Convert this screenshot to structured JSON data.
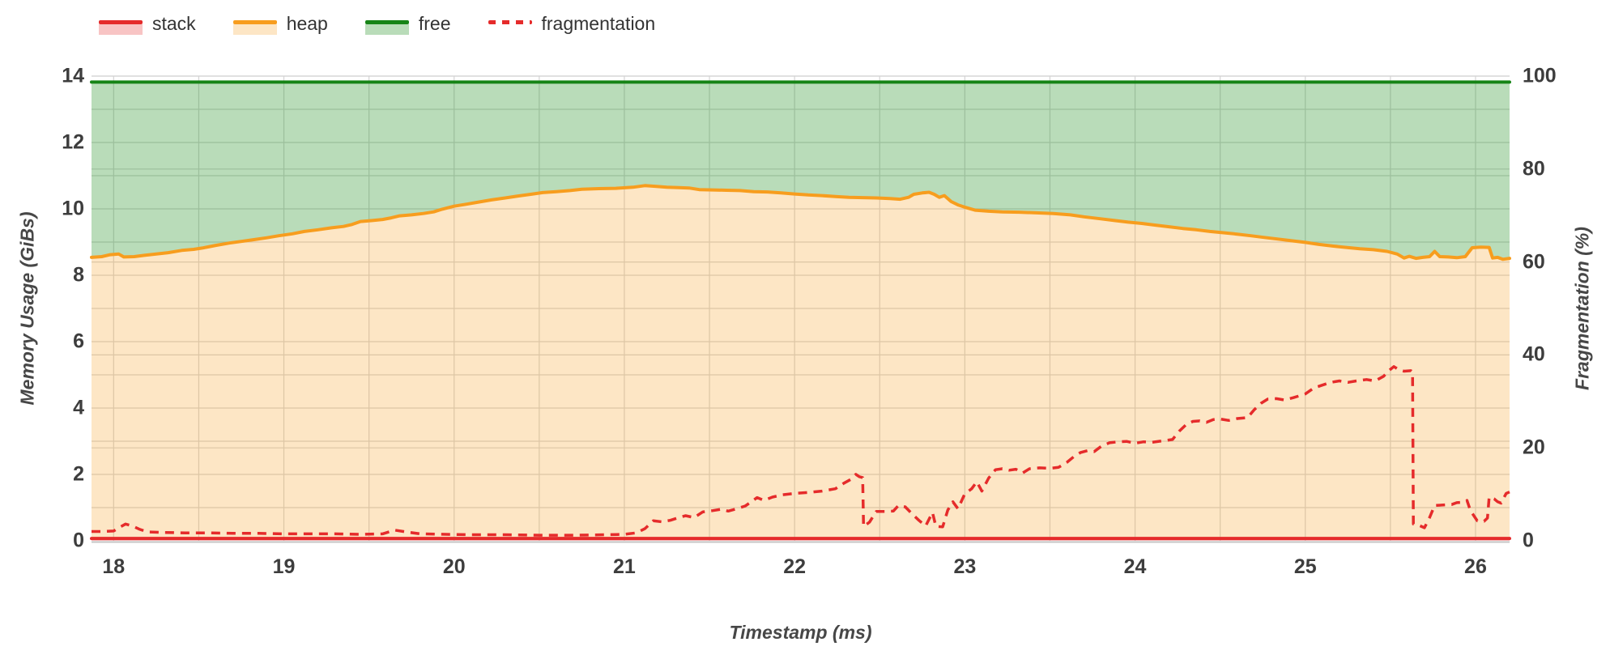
{
  "legend": {
    "items": [
      {
        "label": "stack",
        "line_color": "#e52b2b",
        "fill_color": "rgba(229,43,43,0.28)",
        "dashed": false
      },
      {
        "label": "heap",
        "line_color": "#f79d1e",
        "fill_color": "rgba(247,157,30,0.26)",
        "dashed": false
      },
      {
        "label": "free",
        "line_color": "#168416",
        "fill_color": "rgba(44,150,44,0.33)",
        "dashed": false
      },
      {
        "label": "fragmentation",
        "line_color": "#e52b2b",
        "fill_color": null,
        "dashed": true
      }
    ]
  },
  "axes": {
    "x": {
      "ticks": [
        "18",
        "19",
        "20",
        "21",
        "22",
        "23",
        "24",
        "25",
        "26"
      ]
    },
    "y_left": {
      "ticks": [
        "0",
        "2",
        "4",
        "6",
        "8",
        "10",
        "12",
        "14"
      ]
    },
    "y_right": {
      "ticks": [
        "0",
        "20",
        "40",
        "60",
        "80",
        "100"
      ]
    }
  },
  "colors": {
    "grid": "#d4d4d4",
    "axis_line": "#c4c4c4",
    "tick_text": "#3d3d3d",
    "title_text": "#474747"
  },
  "chart_data": {
    "type": "area",
    "title": "",
    "xlabel": "Timestamp (ms)",
    "ylabel": "Memory Usage (GiBs)",
    "y2label": "Fragmentation (%)",
    "xlim": [
      17.87,
      26.2
    ],
    "ylim": [
      0,
      14
    ],
    "y2lim": [
      0,
      100
    ],
    "x_gridstep": 0.5,
    "y_gridstep": 1,
    "y2_gridstep": 20,
    "grid": true,
    "legend_position": "top-left",
    "series": [
      {
        "name": "stack",
        "axis": "y",
        "kind": "area",
        "line_color": "#e52b2b",
        "fill_color": "rgba(229,43,43,0.28)",
        "lower": 0,
        "points": [
          [
            17.87,
            0.07
          ],
          [
            26.2,
            0.07
          ]
        ]
      },
      {
        "name": "heap",
        "axis": "y",
        "kind": "area",
        "line_color": "#f79d1e",
        "fill_color": "rgba(247,157,30,0.26)",
        "lower": 0.07,
        "points": [
          [
            17.87,
            8.54
          ],
          [
            17.93,
            8.56
          ],
          [
            17.98,
            8.62
          ],
          [
            18.03,
            8.64
          ],
          [
            18.06,
            8.55
          ],
          [
            18.12,
            8.56
          ],
          [
            18.18,
            8.6
          ],
          [
            18.25,
            8.64
          ],
          [
            18.32,
            8.68
          ],
          [
            18.4,
            8.75
          ],
          [
            18.47,
            8.78
          ],
          [
            18.52,
            8.82
          ],
          [
            18.6,
            8.9
          ],
          [
            18.68,
            8.97
          ],
          [
            18.75,
            9.02
          ],
          [
            18.82,
            9.07
          ],
          [
            18.9,
            9.13
          ],
          [
            18.97,
            9.19
          ],
          [
            19.05,
            9.25
          ],
          [
            19.12,
            9.32
          ],
          [
            19.2,
            9.37
          ],
          [
            19.28,
            9.43
          ],
          [
            19.35,
            9.47
          ],
          [
            19.4,
            9.53
          ],
          [
            19.45,
            9.62
          ],
          [
            19.52,
            9.65
          ],
          [
            19.58,
            9.68
          ],
          [
            19.63,
            9.73
          ],
          [
            19.68,
            9.79
          ],
          [
            19.75,
            9.82
          ],
          [
            19.82,
            9.86
          ],
          [
            19.88,
            9.91
          ],
          [
            19.93,
            9.99
          ],
          [
            20.0,
            10.08
          ],
          [
            20.07,
            10.14
          ],
          [
            20.15,
            10.21
          ],
          [
            20.22,
            10.27
          ],
          [
            20.3,
            10.33
          ],
          [
            20.38,
            10.39
          ],
          [
            20.45,
            10.44
          ],
          [
            20.52,
            10.49
          ],
          [
            20.6,
            10.52
          ],
          [
            20.68,
            10.55
          ],
          [
            20.75,
            10.59
          ],
          [
            20.85,
            10.61
          ],
          [
            20.95,
            10.62
          ],
          [
            21.05,
            10.65
          ],
          [
            21.12,
            10.7
          ],
          [
            21.18,
            10.68
          ],
          [
            21.25,
            10.65
          ],
          [
            21.32,
            10.64
          ],
          [
            21.38,
            10.63
          ],
          [
            21.44,
            10.58
          ],
          [
            21.52,
            10.57
          ],
          [
            21.6,
            10.56
          ],
          [
            21.68,
            10.55
          ],
          [
            21.76,
            10.52
          ],
          [
            21.84,
            10.51
          ],
          [
            21.92,
            10.48
          ],
          [
            22.0,
            10.45
          ],
          [
            22.08,
            10.42
          ],
          [
            22.16,
            10.4
          ],
          [
            22.24,
            10.37
          ],
          [
            22.32,
            10.35
          ],
          [
            22.4,
            10.34
          ],
          [
            22.48,
            10.33
          ],
          [
            22.56,
            10.31
          ],
          [
            22.62,
            10.29
          ],
          [
            22.67,
            10.35
          ],
          [
            22.7,
            10.44
          ],
          [
            22.75,
            10.48
          ],
          [
            22.79,
            10.5
          ],
          [
            22.82,
            10.44
          ],
          [
            22.85,
            10.35
          ],
          [
            22.88,
            10.4
          ],
          [
            22.92,
            10.22
          ],
          [
            22.96,
            10.12
          ],
          [
            23.0,
            10.05
          ],
          [
            23.06,
            9.96
          ],
          [
            23.14,
            9.93
          ],
          [
            23.22,
            9.91
          ],
          [
            23.32,
            9.9
          ],
          [
            23.42,
            9.88
          ],
          [
            23.52,
            9.86
          ],
          [
            23.62,
            9.82
          ],
          [
            23.7,
            9.76
          ],
          [
            23.8,
            9.7
          ],
          [
            23.88,
            9.65
          ],
          [
            23.96,
            9.6
          ],
          [
            24.04,
            9.56
          ],
          [
            24.12,
            9.51
          ],
          [
            24.2,
            9.46
          ],
          [
            24.28,
            9.41
          ],
          [
            24.36,
            9.37
          ],
          [
            24.44,
            9.32
          ],
          [
            24.52,
            9.28
          ],
          [
            24.6,
            9.24
          ],
          [
            24.68,
            9.19
          ],
          [
            24.76,
            9.14
          ],
          [
            24.84,
            9.09
          ],
          [
            24.92,
            9.04
          ],
          [
            25.0,
            8.99
          ],
          [
            25.08,
            8.93
          ],
          [
            25.16,
            8.88
          ],
          [
            25.24,
            8.84
          ],
          [
            25.32,
            8.8
          ],
          [
            25.4,
            8.77
          ],
          [
            25.48,
            8.72
          ],
          [
            25.54,
            8.64
          ],
          [
            25.58,
            8.52
          ],
          [
            25.61,
            8.57
          ],
          [
            25.65,
            8.51
          ],
          [
            25.69,
            8.54
          ],
          [
            25.73,
            8.56
          ],
          [
            25.76,
            8.72
          ],
          [
            25.79,
            8.56
          ],
          [
            25.84,
            8.55
          ],
          [
            25.89,
            8.53
          ],
          [
            25.94,
            8.56
          ],
          [
            25.98,
            8.83
          ],
          [
            26.03,
            8.85
          ],
          [
            26.08,
            8.84
          ],
          [
            26.1,
            8.52
          ],
          [
            26.13,
            8.54
          ],
          [
            26.16,
            8.48
          ],
          [
            26.2,
            8.51
          ]
        ]
      },
      {
        "name": "free",
        "axis": "y",
        "kind": "area",
        "line_color": "#168416",
        "fill_color": "rgba(44,150,44,0.33)",
        "lower": "heap",
        "points": [
          [
            17.87,
            13.82
          ],
          [
            26.2,
            13.82
          ]
        ]
      },
      {
        "name": "fragmentation",
        "axis": "y2",
        "kind": "dashed-line",
        "line_color": "#e52b2b",
        "dash": [
          11,
          8
        ],
        "points": [
          [
            17.87,
            2.0
          ],
          [
            17.94,
            2.0
          ],
          [
            18.0,
            2.1
          ],
          [
            18.04,
            3.0
          ],
          [
            18.07,
            3.6
          ],
          [
            18.11,
            3.2
          ],
          [
            18.15,
            2.5
          ],
          [
            18.2,
            1.9
          ],
          [
            18.3,
            1.8
          ],
          [
            18.42,
            1.7
          ],
          [
            18.55,
            1.7
          ],
          [
            18.7,
            1.6
          ],
          [
            18.85,
            1.6
          ],
          [
            19.0,
            1.5
          ],
          [
            19.15,
            1.5
          ],
          [
            19.3,
            1.5
          ],
          [
            19.45,
            1.4
          ],
          [
            19.58,
            1.5
          ],
          [
            19.65,
            2.3
          ],
          [
            19.72,
            1.9
          ],
          [
            19.8,
            1.5
          ],
          [
            19.95,
            1.4
          ],
          [
            20.1,
            1.3
          ],
          [
            20.3,
            1.3
          ],
          [
            20.5,
            1.2
          ],
          [
            20.7,
            1.2
          ],
          [
            20.9,
            1.3
          ],
          [
            21.0,
            1.4
          ],
          [
            21.07,
            1.7
          ],
          [
            21.12,
            2.6
          ],
          [
            21.17,
            4.3
          ],
          [
            21.22,
            4.1
          ],
          [
            21.27,
            4.4
          ],
          [
            21.32,
            5.0
          ],
          [
            21.36,
            5.4
          ],
          [
            21.41,
            5.0
          ],
          [
            21.46,
            6.2
          ],
          [
            21.52,
            6.5
          ],
          [
            21.57,
            6.8
          ],
          [
            21.61,
            6.4
          ],
          [
            21.66,
            6.9
          ],
          [
            21.71,
            7.5
          ],
          [
            21.75,
            8.5
          ],
          [
            21.78,
            9.3
          ],
          [
            21.82,
            8.7
          ],
          [
            21.87,
            9.4
          ],
          [
            21.93,
            9.9
          ],
          [
            22.0,
            10.2
          ],
          [
            22.08,
            10.4
          ],
          [
            22.16,
            10.7
          ],
          [
            22.24,
            11.2
          ],
          [
            22.29,
            12.4
          ],
          [
            22.33,
            13.2
          ],
          [
            22.36,
            14.3
          ],
          [
            22.38,
            13.8
          ],
          [
            22.4,
            13.6
          ],
          [
            22.405,
            3.1
          ],
          [
            22.44,
            4.0
          ],
          [
            22.48,
            6.3
          ],
          [
            22.53,
            6.3
          ],
          [
            22.58,
            6.4
          ],
          [
            22.61,
            7.6
          ],
          [
            22.65,
            7.3
          ],
          [
            22.69,
            5.8
          ],
          [
            22.73,
            4.4
          ],
          [
            22.77,
            3.2
          ],
          [
            22.81,
            6.1
          ],
          [
            22.83,
            3.1
          ],
          [
            22.87,
            3.0
          ],
          [
            22.9,
            6.6
          ],
          [
            22.93,
            8.4
          ],
          [
            22.96,
            6.9
          ],
          [
            23.0,
            10.1
          ],
          [
            23.04,
            11.2
          ],
          [
            23.07,
            12.7
          ],
          [
            23.1,
            10.7
          ],
          [
            23.14,
            13.5
          ],
          [
            23.18,
            15.3
          ],
          [
            23.22,
            15.5
          ],
          [
            23.26,
            15.2
          ],
          [
            23.3,
            15.4
          ],
          [
            23.34,
            14.6
          ],
          [
            23.38,
            15.5
          ],
          [
            23.44,
            15.7
          ],
          [
            23.5,
            15.6
          ],
          [
            23.55,
            15.8
          ],
          [
            23.6,
            16.9
          ],
          [
            23.64,
            18.1
          ],
          [
            23.68,
            19.0
          ],
          [
            23.72,
            19.4
          ],
          [
            23.76,
            19.2
          ],
          [
            23.8,
            20.3
          ],
          [
            23.85,
            21.1
          ],
          [
            23.9,
            21.3
          ],
          [
            23.95,
            21.4
          ],
          [
            24.0,
            21.0
          ],
          [
            24.05,
            21.3
          ],
          [
            24.1,
            21.2
          ],
          [
            24.16,
            21.5
          ],
          [
            24.22,
            21.8
          ],
          [
            24.26,
            23.6
          ],
          [
            24.3,
            25.0
          ],
          [
            24.34,
            25.7
          ],
          [
            24.38,
            25.8
          ],
          [
            24.42,
            25.5
          ],
          [
            24.46,
            26.1
          ],
          [
            24.5,
            26.2
          ],
          [
            24.55,
            25.9
          ],
          [
            24.6,
            26.3
          ],
          [
            24.66,
            26.5
          ],
          [
            24.7,
            28.2
          ],
          [
            24.74,
            29.6
          ],
          [
            24.78,
            30.5
          ],
          [
            24.83,
            30.6
          ],
          [
            24.88,
            30.3
          ],
          [
            24.93,
            30.8
          ],
          [
            25.0,
            31.6
          ],
          [
            25.05,
            32.9
          ],
          [
            25.1,
            33.5
          ],
          [
            25.15,
            34.1
          ],
          [
            25.2,
            34.4
          ],
          [
            25.25,
            34.1
          ],
          [
            25.3,
            34.4
          ],
          [
            25.36,
            34.7
          ],
          [
            25.41,
            34.4
          ],
          [
            25.46,
            35.4
          ],
          [
            25.49,
            36.6
          ],
          [
            25.52,
            37.5
          ],
          [
            25.55,
            36.8
          ],
          [
            25.58,
            36.5
          ],
          [
            25.62,
            36.6
          ],
          [
            25.63,
            36.3
          ],
          [
            25.635,
            3.6
          ],
          [
            25.67,
            3.3
          ],
          [
            25.7,
            2.8
          ],
          [
            25.73,
            5.0
          ],
          [
            25.76,
            7.6
          ],
          [
            25.81,
            7.7
          ],
          [
            25.86,
            7.8
          ],
          [
            25.89,
            8.2
          ],
          [
            25.93,
            8.3
          ],
          [
            25.95,
            8.7
          ],
          [
            25.97,
            6.5
          ],
          [
            25.99,
            5.4
          ],
          [
            26.01,
            4.3
          ],
          [
            26.05,
            4.2
          ],
          [
            26.07,
            4.9
          ],
          [
            26.08,
            9.4
          ],
          [
            26.11,
            9.0
          ],
          [
            26.13,
            8.4
          ],
          [
            26.15,
            8.1
          ],
          [
            26.18,
            10.2
          ],
          [
            26.2,
            10.5
          ]
        ]
      }
    ]
  }
}
